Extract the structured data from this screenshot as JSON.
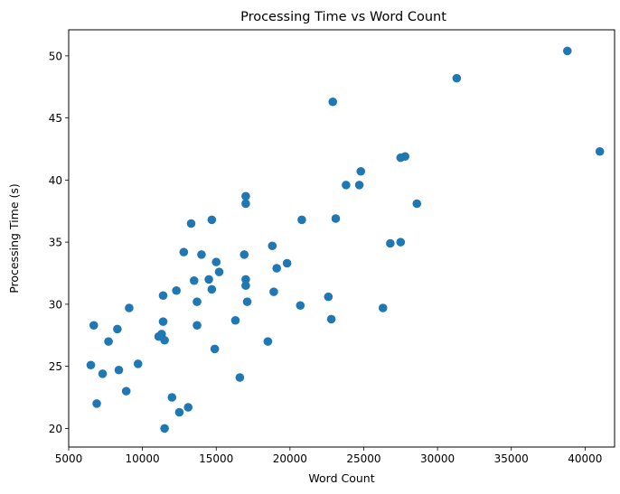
{
  "chart_data": {
    "type": "scatter",
    "title": "Processing Time vs Word Count",
    "xlabel": "Word Count",
    "ylabel": "Processing Time (s)",
    "xlim": [
      5000,
      42000
    ],
    "ylim": [
      18.5,
      52.1
    ],
    "xticks": [
      5000,
      10000,
      15000,
      20000,
      25000,
      30000,
      35000,
      40000
    ],
    "yticks": [
      20,
      25,
      30,
      35,
      40,
      45,
      50
    ],
    "grid": false,
    "legend": "none",
    "marker_color": "#1f77b4",
    "points": [
      {
        "x": 6500,
        "y": 25.1
      },
      {
        "x": 6700,
        "y": 28.3
      },
      {
        "x": 6900,
        "y": 22.0
      },
      {
        "x": 7300,
        "y": 24.4
      },
      {
        "x": 7700,
        "y": 27.0
      },
      {
        "x": 8300,
        "y": 28.0
      },
      {
        "x": 8400,
        "y": 24.7
      },
      {
        "x": 8900,
        "y": 23.0
      },
      {
        "x": 9100,
        "y": 29.7
      },
      {
        "x": 9700,
        "y": 25.2
      },
      {
        "x": 11100,
        "y": 27.4
      },
      {
        "x": 11300,
        "y": 27.6
      },
      {
        "x": 11400,
        "y": 30.7
      },
      {
        "x": 11400,
        "y": 28.6
      },
      {
        "x": 11500,
        "y": 27.1
      },
      {
        "x": 11500,
        "y": 20.0
      },
      {
        "x": 12000,
        "y": 22.5
      },
      {
        "x": 12300,
        "y": 31.1
      },
      {
        "x": 12500,
        "y": 21.3
      },
      {
        "x": 12800,
        "y": 34.2
      },
      {
        "x": 13100,
        "y": 21.7
      },
      {
        "x": 13300,
        "y": 36.5
      },
      {
        "x": 13500,
        "y": 31.9
      },
      {
        "x": 13700,
        "y": 30.2
      },
      {
        "x": 13700,
        "y": 28.3
      },
      {
        "x": 14000,
        "y": 34.0
      },
      {
        "x": 14500,
        "y": 32.0
      },
      {
        "x": 14700,
        "y": 31.2
      },
      {
        "x": 14700,
        "y": 36.8
      },
      {
        "x": 14900,
        "y": 26.4
      },
      {
        "x": 15000,
        "y": 33.4
      },
      {
        "x": 15200,
        "y": 32.6
      },
      {
        "x": 16300,
        "y": 28.7
      },
      {
        "x": 16600,
        "y": 24.1
      },
      {
        "x": 16900,
        "y": 34.0
      },
      {
        "x": 17000,
        "y": 31.5
      },
      {
        "x": 17000,
        "y": 32.0
      },
      {
        "x": 17000,
        "y": 38.7
      },
      {
        "x": 17000,
        "y": 38.1
      },
      {
        "x": 17100,
        "y": 30.2
      },
      {
        "x": 18500,
        "y": 27.0
      },
      {
        "x": 18800,
        "y": 34.7
      },
      {
        "x": 18900,
        "y": 31.0
      },
      {
        "x": 19100,
        "y": 32.9
      },
      {
        "x": 19800,
        "y": 33.3
      },
      {
        "x": 20700,
        "y": 29.9
      },
      {
        "x": 20800,
        "y": 36.8
      },
      {
        "x": 22600,
        "y": 30.6
      },
      {
        "x": 22800,
        "y": 28.8
      },
      {
        "x": 22900,
        "y": 46.3
      },
      {
        "x": 23100,
        "y": 36.9
      },
      {
        "x": 23800,
        "y": 39.6
      },
      {
        "x": 24700,
        "y": 39.6
      },
      {
        "x": 24800,
        "y": 40.7
      },
      {
        "x": 26300,
        "y": 29.7
      },
      {
        "x": 26800,
        "y": 34.9
      },
      {
        "x": 27500,
        "y": 41.8
      },
      {
        "x": 27500,
        "y": 35.0
      },
      {
        "x": 27800,
        "y": 41.9
      },
      {
        "x": 28600,
        "y": 38.1
      },
      {
        "x": 31300,
        "y": 48.2
      },
      {
        "x": 38800,
        "y": 50.4
      },
      {
        "x": 41000,
        "y": 42.3
      }
    ]
  }
}
